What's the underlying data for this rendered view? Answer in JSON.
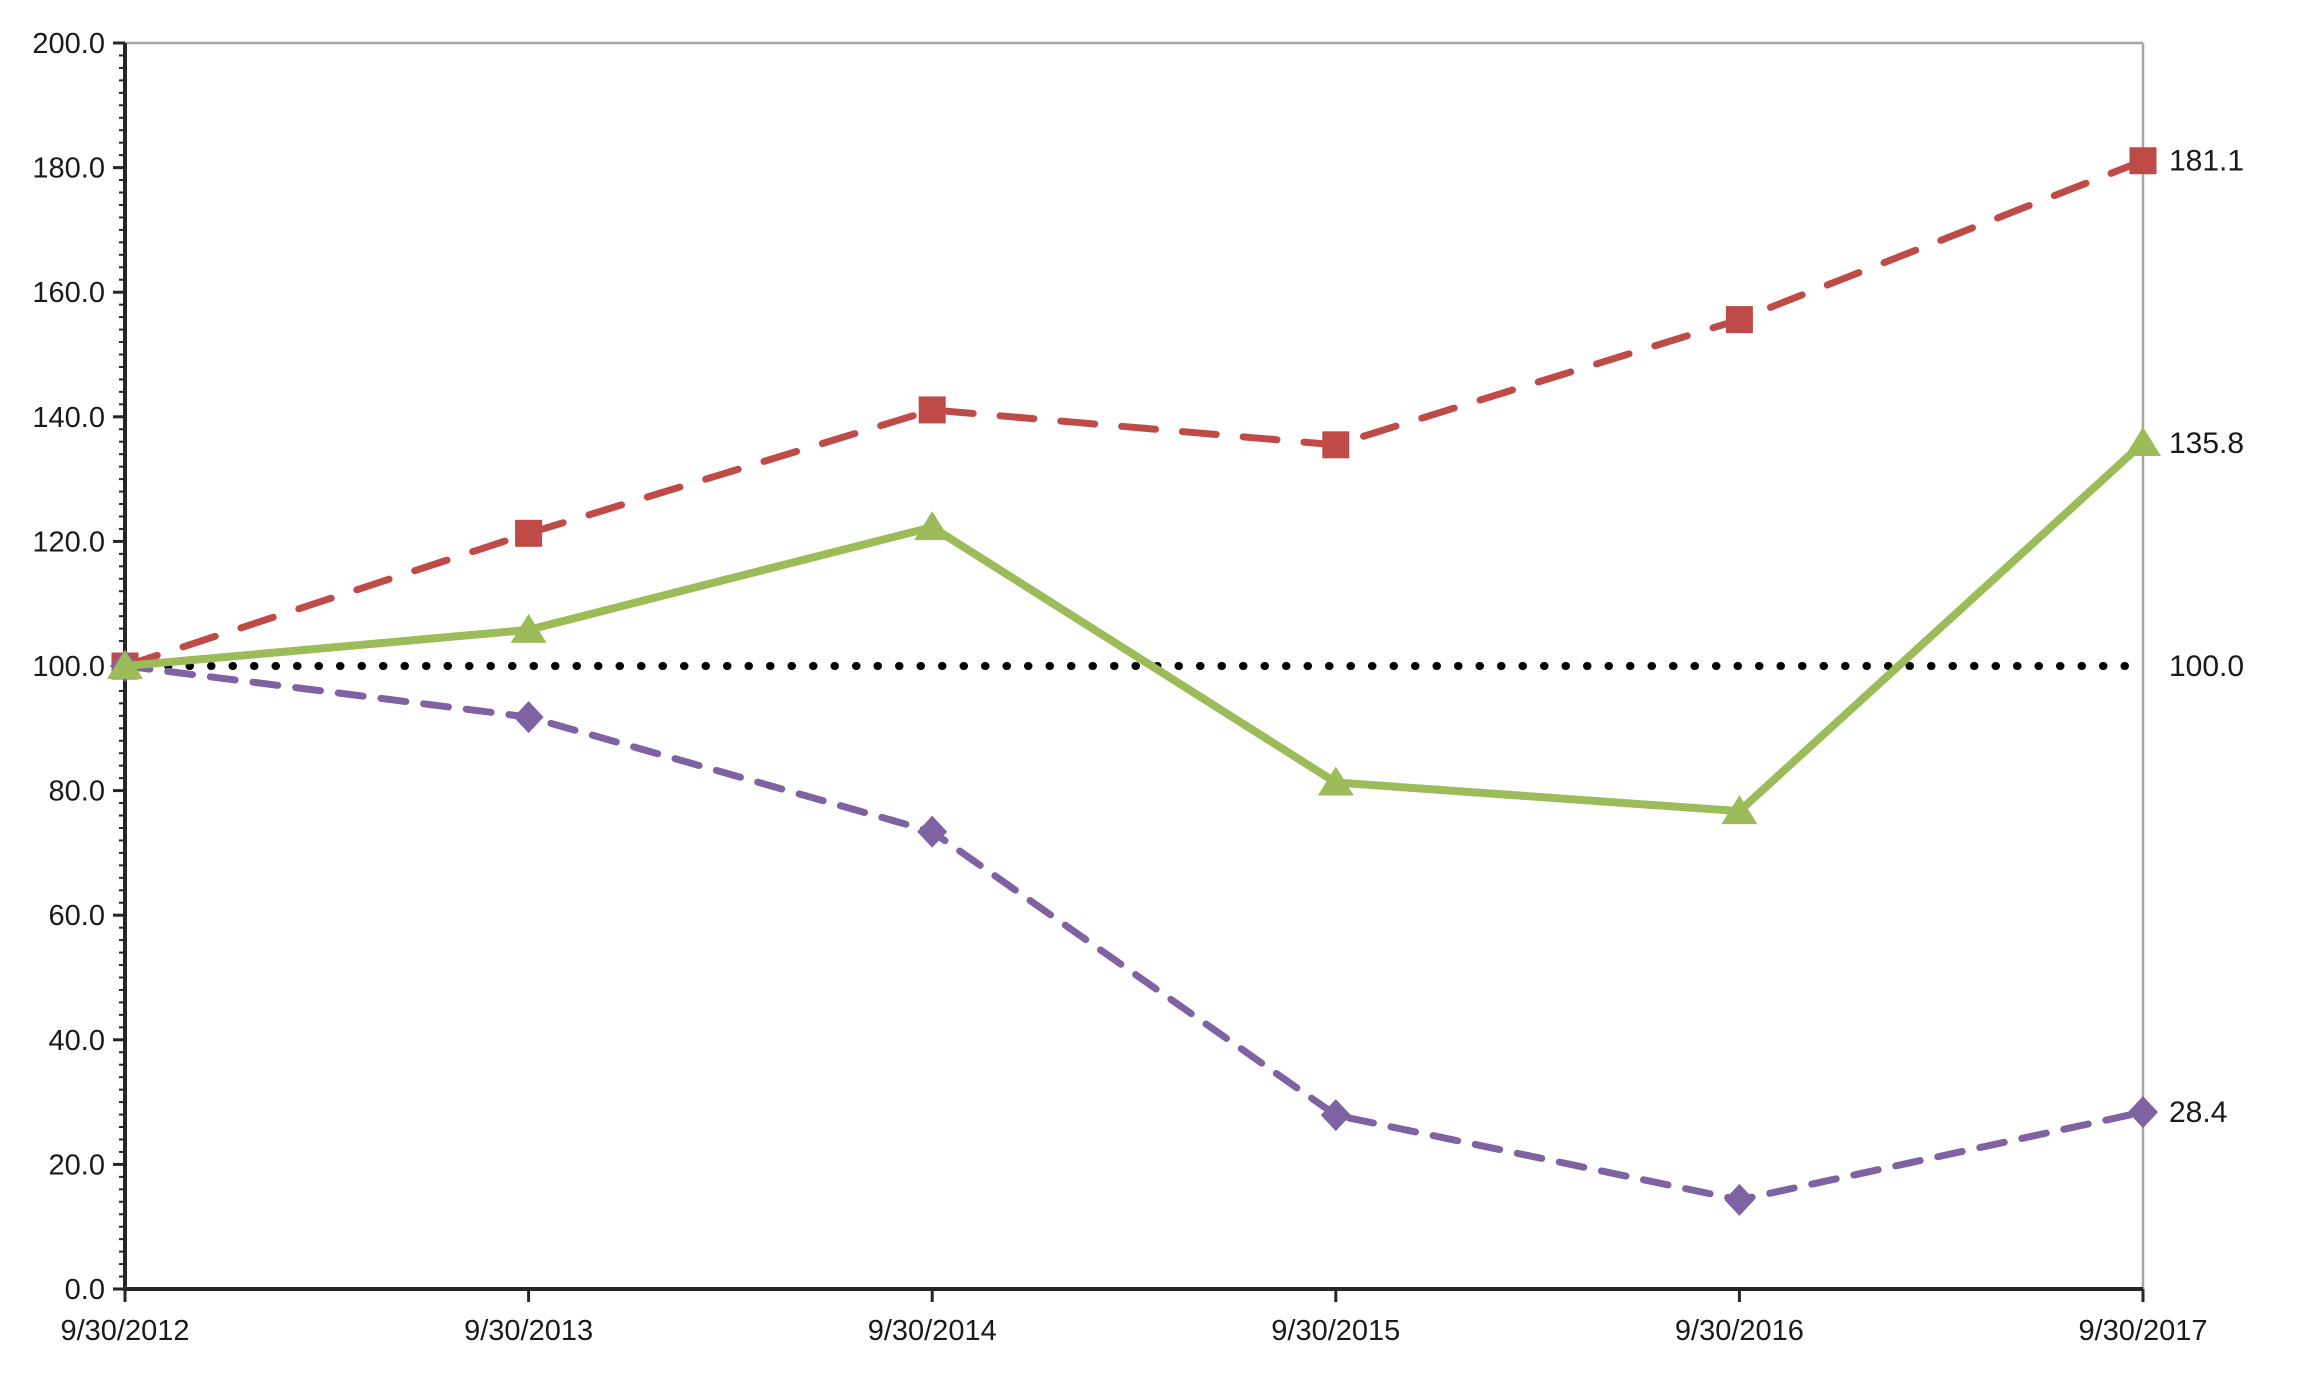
{
  "chart_data": {
    "type": "line",
    "title": "",
    "xlabel": "",
    "ylabel": "",
    "x": [
      "9/30/2012",
      "9/30/2013",
      "9/30/2014",
      "9/30/2015",
      "9/30/2016",
      "9/30/2017"
    ],
    "series": [
      {
        "name": "red-dashed-squares",
        "color": "#BE4B48",
        "line_style": "dashed",
        "marker": "square",
        "values": [
          100.0,
          121.3,
          141.1,
          135.5,
          155.6,
          181.1
        ],
        "end_label": "181.1"
      },
      {
        "name": "green-solid-triangles",
        "color": "#9CBB59",
        "line_style": "solid",
        "marker": "triangle",
        "values": [
          100.0,
          105.8,
          122.3,
          81.3,
          76.7,
          135.8
        ],
        "end_label": "135.8"
      },
      {
        "name": "purple-dashed-diamonds",
        "color": "#7E62A1",
        "line_style": "dashed",
        "marker": "diamond",
        "values": [
          100.0,
          91.8,
          73.4,
          27.9,
          14.3,
          28.4
        ],
        "end_label": "28.4"
      },
      {
        "name": "black-dotted-baseline",
        "color": "#000000",
        "line_style": "dotted",
        "marker": "none",
        "values": [
          100.0,
          100.0,
          100.0,
          100.0,
          100.0,
          100.0
        ],
        "end_label": "100.0"
      }
    ],
    "ylim": [
      0,
      200
    ],
    "y_tick_step": 20,
    "y_minor_tick_step": 2,
    "y_tick_labels": [
      "0.0",
      "20.0",
      "40.0",
      "60.0",
      "80.0",
      "100.0",
      "120.0",
      "140.0",
      "160.0",
      "180.0",
      "200.0"
    ],
    "legend": "none",
    "grid": "off",
    "axis_color": "#262626",
    "border_color": "#A6A6A6"
  }
}
